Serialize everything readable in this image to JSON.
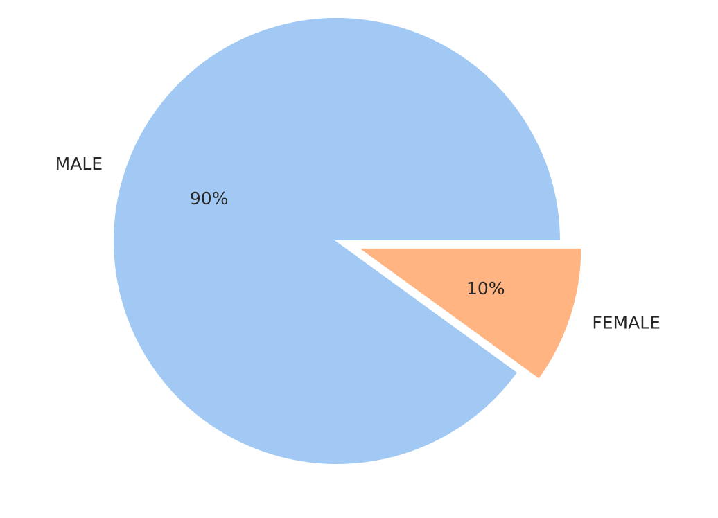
{
  "chart_data": {
    "type": "pie",
    "slices": [
      {
        "label": "MALE",
        "value": 90,
        "pct_label": "90%",
        "color": "#a1c9f4",
        "exploded": false
      },
      {
        "label": "FEMALE",
        "value": 10,
        "pct_label": "10%",
        "color": "#ffb482",
        "exploded": true
      }
    ],
    "start_angle_deg": 0,
    "direction": "counterclockwise",
    "legend": "none"
  }
}
